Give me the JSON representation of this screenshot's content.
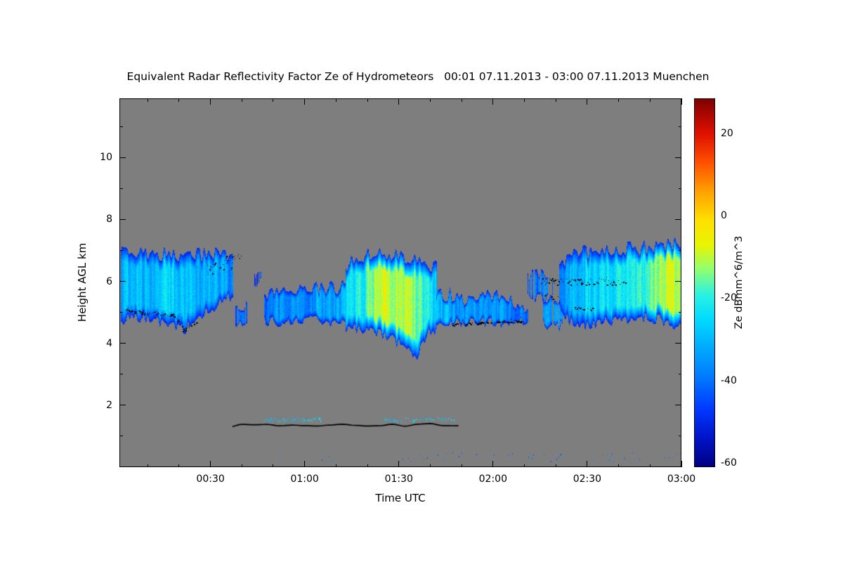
{
  "chart_data": {
    "type": "heatmap",
    "title": "Equivalent Radar Reflectivity Factor Ze of Hydrometeors   00:01 07.11.2013 - 03:00 07.11.2013 Muenchen",
    "xlabel": "Time UTC",
    "ylabel": "Height AGL km",
    "background_color": "#7E7E7E",
    "frame_color": "#000000",
    "x_range_minutes": [
      1,
      180
    ],
    "x_ticks": [
      {
        "t": 30,
        "label": "00:30"
      },
      {
        "t": 60,
        "label": "01:00"
      },
      {
        "t": 90,
        "label": "01:30"
      },
      {
        "t": 120,
        "label": "02:00"
      },
      {
        "t": 150,
        "label": "02:30"
      },
      {
        "t": 180,
        "label": "03:00"
      }
    ],
    "x_minor_step_minutes": 10,
    "y_range_km": [
      0,
      11.91
    ],
    "y_ticks": [
      {
        "z": 2,
        "label": "2"
      },
      {
        "z": 4,
        "label": "4"
      },
      {
        "z": 6,
        "label": "6"
      },
      {
        "z": 8,
        "label": "8"
      },
      {
        "z": 10,
        "label": "10"
      }
    ],
    "y_minor_step_km": 1,
    "colorbar": {
      "label": "Ze dBmm^6/m^3",
      "range": [
        -61,
        28.5
      ],
      "ticks": [
        {
          "v": 20,
          "label": "20"
        },
        {
          "v": 0,
          "label": "0"
        },
        {
          "v": -20,
          "label": "-20"
        },
        {
          "v": -40,
          "label": "-40"
        },
        {
          "v": -60,
          "label": "-60"
        }
      ],
      "stops": [
        [
          -61,
          "#000082"
        ],
        [
          -54,
          "#0013C8"
        ],
        [
          -47,
          "#0038FF"
        ],
        [
          -39,
          "#007CFF"
        ],
        [
          -31,
          "#00B2FF"
        ],
        [
          -25,
          "#00DCFF"
        ],
        [
          -19,
          "#2CF2E0"
        ],
        [
          -13,
          "#90FF70"
        ],
        [
          -7,
          "#E8F400"
        ],
        [
          -1,
          "#FFE000"
        ],
        [
          6,
          "#FFA000"
        ],
        [
          13,
          "#FF5000"
        ],
        [
          20,
          "#E01000"
        ],
        [
          28.5,
          "#800000"
        ]
      ]
    },
    "cloud_value_units": "Ze dBmm^6/m^3",
    "clouds": [
      {
        "name": "cloud-a",
        "density": 1,
        "pts": [
          [
            1.5,
            4.75,
            6.95,
            -31
          ],
          [
            6,
            4.85,
            7.0,
            -28
          ],
          [
            10,
            4.8,
            6.95,
            -29
          ],
          [
            14,
            4.7,
            6.9,
            -28
          ],
          [
            18,
            4.55,
            6.85,
            -29
          ],
          [
            22,
            4.45,
            6.8,
            -31
          ],
          [
            26,
            4.9,
            6.85,
            -32
          ],
          [
            30,
            5.1,
            6.9,
            -33
          ],
          [
            34,
            5.35,
            6.85,
            -35
          ],
          [
            37,
            5.55,
            6.7,
            -40
          ]
        ]
      },
      {
        "name": "cloud-a2",
        "density": 0.75,
        "pts": [
          [
            38,
            4.7,
            5.25,
            -43
          ],
          [
            40,
            4.65,
            5.3,
            -41
          ],
          [
            42,
            4.7,
            5.2,
            -44
          ]
        ]
      },
      {
        "name": "speck-mid",
        "density": 0.6,
        "pts": [
          [
            44,
            5.95,
            6.3,
            -44
          ],
          [
            46,
            5.95,
            6.25,
            -45
          ]
        ]
      },
      {
        "name": "cloud-b1",
        "density": 1,
        "pts": [
          [
            47,
            4.7,
            5.5,
            -38
          ],
          [
            50,
            4.72,
            5.6,
            -35
          ],
          [
            55,
            4.7,
            5.75,
            -34
          ],
          [
            60,
            4.75,
            5.7,
            -35
          ],
          [
            65,
            4.72,
            5.85,
            -34
          ],
          [
            70,
            4.7,
            5.8,
            -33
          ],
          [
            74,
            4.62,
            6.0,
            -31
          ]
        ]
      },
      {
        "name": "cloud-b2-core",
        "density": 1,
        "pts": [
          [
            73,
            4.55,
            6.5,
            -28
          ],
          [
            78,
            4.4,
            6.8,
            -21
          ],
          [
            82,
            4.35,
            6.9,
            -14
          ],
          [
            86,
            4.25,
            6.9,
            -10
          ],
          [
            90,
            4.0,
            6.85,
            -9
          ],
          [
            93,
            3.75,
            6.8,
            -11
          ],
          [
            96,
            3.65,
            6.7,
            -16
          ],
          [
            99,
            4.3,
            6.6,
            -23
          ],
          [
            102,
            4.5,
            6.45,
            -29
          ]
        ]
      },
      {
        "name": "cloud-b3",
        "density": 1,
        "pts": [
          [
            102,
            4.68,
            5.6,
            -31
          ],
          [
            107,
            4.7,
            5.55,
            -34
          ],
          [
            112,
            4.72,
            5.45,
            -36
          ],
          [
            117,
            4.7,
            5.5,
            -35
          ],
          [
            122,
            4.68,
            5.55,
            -34
          ],
          [
            126,
            4.7,
            5.4,
            -37
          ],
          [
            129,
            4.72,
            5.3,
            -39
          ],
          [
            131,
            4.75,
            5.15,
            -43
          ]
        ]
      },
      {
        "name": "cloud-c1",
        "density": 0.7,
        "pts": [
          [
            131,
            5.55,
            6.25,
            -41
          ],
          [
            134,
            5.5,
            6.3,
            -38
          ],
          [
            137,
            5.45,
            6.2,
            -40
          ],
          [
            139,
            5.5,
            6.1,
            -43
          ]
        ]
      },
      {
        "name": "cloud-c2",
        "density": 0.85,
        "pts": [
          [
            136,
            4.6,
            5.3,
            -37
          ],
          [
            139,
            4.55,
            5.35,
            -35
          ],
          [
            142,
            4.6,
            5.3,
            -38
          ]
        ]
      },
      {
        "name": "cloud-c-main",
        "density": 1,
        "pts": [
          [
            141,
            5.3,
            6.5,
            -37
          ],
          [
            144,
            4.75,
            6.8,
            -31
          ],
          [
            148,
            4.6,
            6.95,
            -29
          ],
          [
            152,
            4.65,
            7.0,
            -27
          ],
          [
            156,
            4.7,
            7.0,
            -26
          ],
          [
            160,
            4.75,
            7.05,
            -24
          ],
          [
            164,
            4.8,
            7.05,
            -22
          ],
          [
            168,
            4.85,
            7.1,
            -19
          ],
          [
            172,
            4.8,
            7.15,
            -15
          ],
          [
            176,
            4.6,
            7.2,
            -12
          ],
          [
            180,
            4.5,
            7.25,
            -11
          ]
        ]
      }
    ],
    "speck_rows": [
      {
        "t0": 47,
        "t1": 65,
        "z": 1.55,
        "val": -28
      },
      {
        "t0": 85,
        "t1": 108,
        "z": 1.55,
        "val": -27
      }
    ],
    "surface_specks": [
      {
        "t0": 40,
        "t1": 90,
        "density": 0.05
      },
      {
        "t0": 90,
        "t1": 150,
        "density": 0.1
      },
      {
        "t0": 150,
        "t1": 180,
        "density": 0.2
      }
    ],
    "black_tracks": [
      {
        "type": "dots",
        "t0": 3,
        "t1": 18,
        "z0": 5.05,
        "z1": 4.92,
        "jitter": 0.06,
        "density": 0.8
      },
      {
        "type": "dots",
        "t0": 18,
        "t1": 22,
        "z0": 4.9,
        "z1": 4.45,
        "jitter": 0.05,
        "density": 0.7
      },
      {
        "type": "dots",
        "t0": 21,
        "t1": 26,
        "z0": 4.42,
        "z1": 4.72,
        "jitter": 0.05,
        "density": 0.6
      },
      {
        "type": "dots",
        "t0": 29,
        "t1": 37,
        "z0": 6.35,
        "z1": 6.6,
        "jitter": 0.22,
        "density": 0.5
      },
      {
        "type": "dots",
        "t0": 33,
        "t1": 40,
        "z0": 6.85,
        "z1": 6.8,
        "jitter": 0.07,
        "density": 0.35
      },
      {
        "type": "line",
        "t0": 37,
        "t1": 109,
        "z0": 1.34,
        "z1": 1.38,
        "wiggle": 0.05
      },
      {
        "type": "dots",
        "t0": 107,
        "t1": 130,
        "z0": 4.62,
        "z1": 4.72,
        "jitter": 0.04,
        "density": 0.85
      },
      {
        "type": "dots",
        "t0": 135,
        "t1": 148,
        "z0": 6.02,
        "z1": 5.98,
        "jitter": 0.12,
        "density": 0.8
      },
      {
        "type": "dots",
        "t0": 148,
        "t1": 156,
        "z0": 5.95,
        "z1": 6.05,
        "jitter": 0.1,
        "density": 0.6
      },
      {
        "type": "dots",
        "t0": 156,
        "t1": 163,
        "z0": 5.95,
        "z1": 6.0,
        "jitter": 0.07,
        "density": 0.4
      },
      {
        "type": "dots",
        "t0": 136,
        "t1": 141,
        "z0": 5.45,
        "z1": 5.5,
        "jitter": 0.1,
        "density": 0.4
      },
      {
        "type": "dots",
        "t0": 146,
        "t1": 152,
        "z0": 5.15,
        "z1": 5.1,
        "jitter": 0.05,
        "density": 0.5
      }
    ]
  }
}
